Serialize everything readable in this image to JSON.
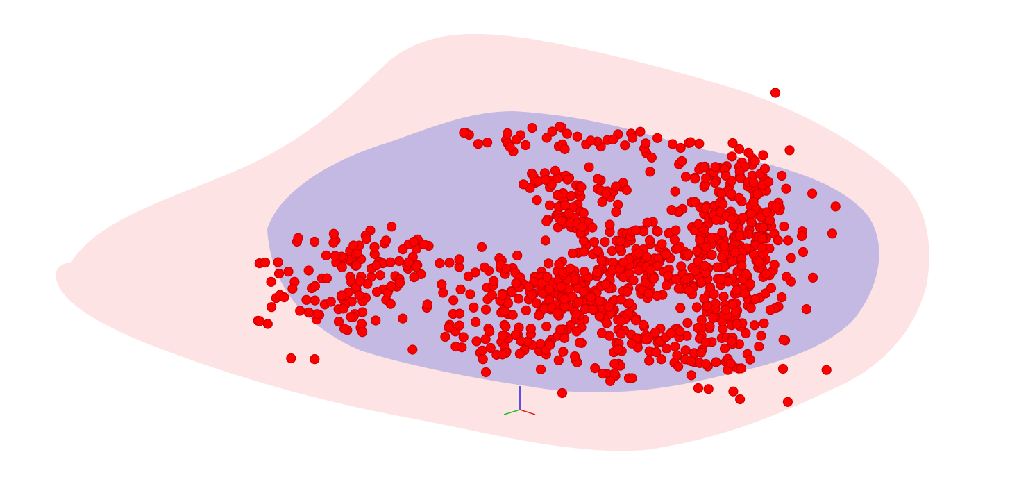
{
  "scene": {
    "background_color": "#ffffff",
    "outer_surface_color": "#fde3e3",
    "inner_surface_color": "#c4b9e2",
    "marker_fill_color": "#ff0000",
    "marker_edge_color": "#c80000",
    "axis_colors": {
      "x": "#e02020",
      "y": "#20c020",
      "z": "#2020e0"
    }
  }
}
